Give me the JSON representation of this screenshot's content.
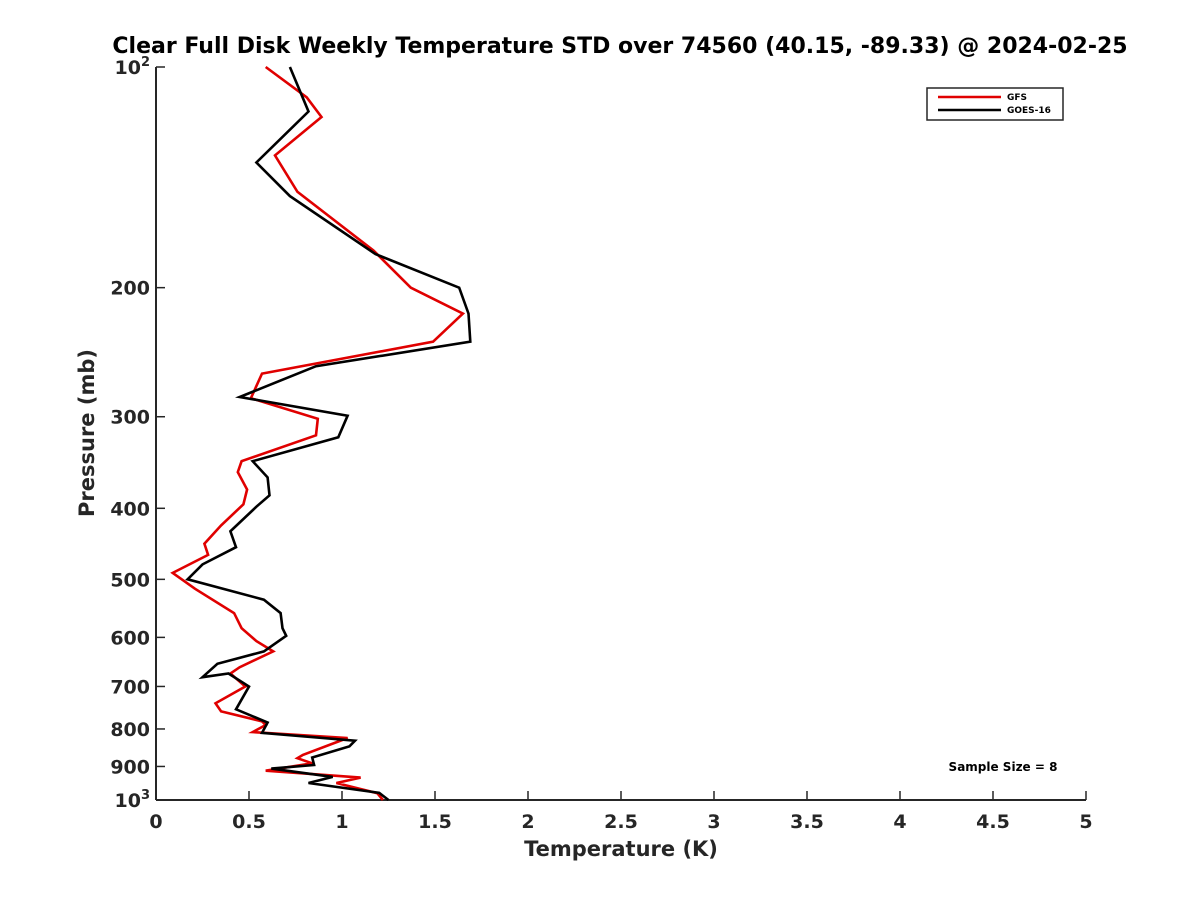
{
  "chart_data": {
    "type": "line",
    "title": "Clear Full Disk Weekly Temperature STD over 74560 (40.15, -89.33) @ 2024-02-25",
    "xlabel": "Temperature (K)",
    "ylabel": "Pressure (mb)",
    "xlim": [
      0,
      5
    ],
    "ylim": [
      100,
      1000
    ],
    "y_scale": "log",
    "y_direction": "reversed",
    "x_ticks": [
      "0",
      "0.5",
      "1",
      "1.5",
      "2",
      "2.5",
      "3",
      "3.5",
      "4",
      "4.5",
      "5"
    ],
    "y_ticks": [
      {
        "value": 100,
        "base": "10",
        "exp": "2"
      },
      {
        "value": 200,
        "label": "200"
      },
      {
        "value": 300,
        "label": "300"
      },
      {
        "value": 400,
        "label": "400"
      },
      {
        "value": 500,
        "label": "500"
      },
      {
        "value": 600,
        "label": "600"
      },
      {
        "value": 700,
        "label": "700"
      },
      {
        "value": 800,
        "label": "800"
      },
      {
        "value": 900,
        "label": "900"
      },
      {
        "value": 1000,
        "base": "10",
        "exp": "3"
      }
    ],
    "grid": false,
    "legend_position": "top-right",
    "annotation": "Sample Size = 8",
    "series": [
      {
        "name": "GFS",
        "color": "#e00000",
        "points": [
          [
            0.59,
            100
          ],
          [
            0.81,
            110
          ],
          [
            0.89,
            117
          ],
          [
            0.64,
            132
          ],
          [
            0.76,
            148
          ],
          [
            1.17,
            178
          ],
          [
            1.37,
            200
          ],
          [
            1.65,
            217
          ],
          [
            1.49,
            237
          ],
          [
            0.57,
            262
          ],
          [
            0.51,
            283
          ],
          [
            0.87,
            302
          ],
          [
            0.86,
            318
          ],
          [
            0.46,
            345
          ],
          [
            0.44,
            357
          ],
          [
            0.49,
            377
          ],
          [
            0.47,
            395
          ],
          [
            0.35,
            422
          ],
          [
            0.26,
            447
          ],
          [
            0.28,
            463
          ],
          [
            0.09,
            490
          ],
          [
            0.21,
            515
          ],
          [
            0.42,
            556
          ],
          [
            0.46,
            583
          ],
          [
            0.54,
            607
          ],
          [
            0.63,
            627
          ],
          [
            0.45,
            659
          ],
          [
            0.4,
            672
          ],
          [
            0.48,
            700
          ],
          [
            0.32,
            738
          ],
          [
            0.35,
            757
          ],
          [
            0.57,
            781
          ],
          [
            0.59,
            790
          ],
          [
            0.52,
            808
          ],
          [
            1.03,
            823
          ],
          [
            0.79,
            868
          ],
          [
            0.76,
            877
          ],
          [
            0.84,
            891
          ],
          [
            0.59,
            912
          ],
          [
            1.1,
            932
          ],
          [
            0.97,
            948
          ],
          [
            1.19,
            979
          ],
          [
            1.22,
            1000
          ]
        ]
      },
      {
        "name": "GOES-16",
        "color": "#000000",
        "points": [
          [
            0.72,
            100
          ],
          [
            0.82,
            115
          ],
          [
            0.54,
            135
          ],
          [
            0.72,
            150
          ],
          [
            1.18,
            180
          ],
          [
            1.63,
            200
          ],
          [
            1.68,
            217
          ],
          [
            1.69,
            237
          ],
          [
            0.86,
            256
          ],
          [
            0.45,
            282
          ],
          [
            1.03,
            299
          ],
          [
            0.98,
            320
          ],
          [
            0.52,
            345
          ],
          [
            0.6,
            363
          ],
          [
            0.61,
            384
          ],
          [
            0.54,
            398
          ],
          [
            0.4,
            430
          ],
          [
            0.43,
            452
          ],
          [
            0.25,
            477
          ],
          [
            0.17,
            500
          ],
          [
            0.58,
            533
          ],
          [
            0.67,
            556
          ],
          [
            0.68,
            583
          ],
          [
            0.7,
            597
          ],
          [
            0.58,
            627
          ],
          [
            0.33,
            652
          ],
          [
            0.25,
            680
          ],
          [
            0.39,
            672
          ],
          [
            0.5,
            700
          ],
          [
            0.43,
            752
          ],
          [
            0.6,
            784
          ],
          [
            0.57,
            810
          ],
          [
            1.07,
            830
          ],
          [
            1.04,
            845
          ],
          [
            0.84,
            875
          ],
          [
            0.85,
            896
          ],
          [
            0.62,
            906
          ],
          [
            0.95,
            930
          ],
          [
            0.82,
            948
          ],
          [
            1.2,
            978
          ],
          [
            1.25,
            1000
          ]
        ]
      }
    ]
  }
}
